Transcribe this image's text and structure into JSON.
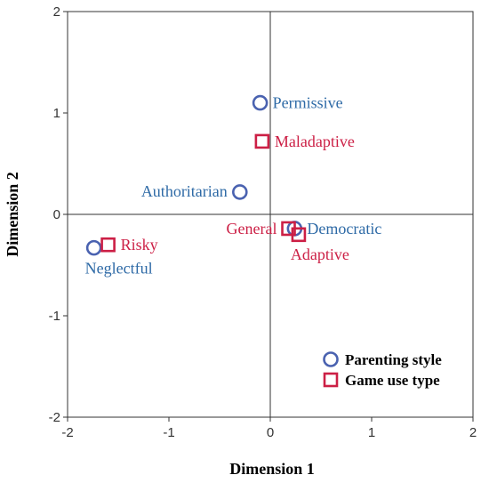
{
  "chart_data": {
    "type": "scatter",
    "title": "",
    "xlabel": "Dimension 1",
    "ylabel": "Dimension 2",
    "xlim": [
      -2,
      2
    ],
    "ylim": [
      -2,
      2
    ],
    "xticks": [
      "-2",
      "-1",
      "0",
      "1",
      "2"
    ],
    "yticks": [
      "-2",
      "-1",
      "0",
      "1",
      "2"
    ],
    "grid": false,
    "reference_lines": {
      "x": 0,
      "y": 0
    },
    "legend_position": "bottom-right",
    "series": [
      {
        "name": "Parenting style",
        "marker": "circle",
        "color": "#4a62b0",
        "label_color": "#2e6aa6",
        "points": [
          {
            "label": "Permissive",
            "x": -0.1,
            "y": 1.1
          },
          {
            "label": "Authoritarian",
            "x": -0.3,
            "y": 0.22
          },
          {
            "label": "Democratic",
            "x": 0.24,
            "y": -0.14
          },
          {
            "label": "Neglectful",
            "x": -1.74,
            "y": -0.33
          }
        ]
      },
      {
        "name": "Game use type",
        "marker": "square",
        "color": "#cc1f45",
        "label_color": "#cc1f45",
        "points": [
          {
            "label": "Maladaptive",
            "x": -0.08,
            "y": 0.72
          },
          {
            "label": "General",
            "x": 0.18,
            "y": -0.14
          },
          {
            "label": "Adaptive",
            "x": 0.28,
            "y": -0.2
          },
          {
            "label": "Risky",
            "x": -1.6,
            "y": -0.3
          }
        ]
      }
    ]
  }
}
